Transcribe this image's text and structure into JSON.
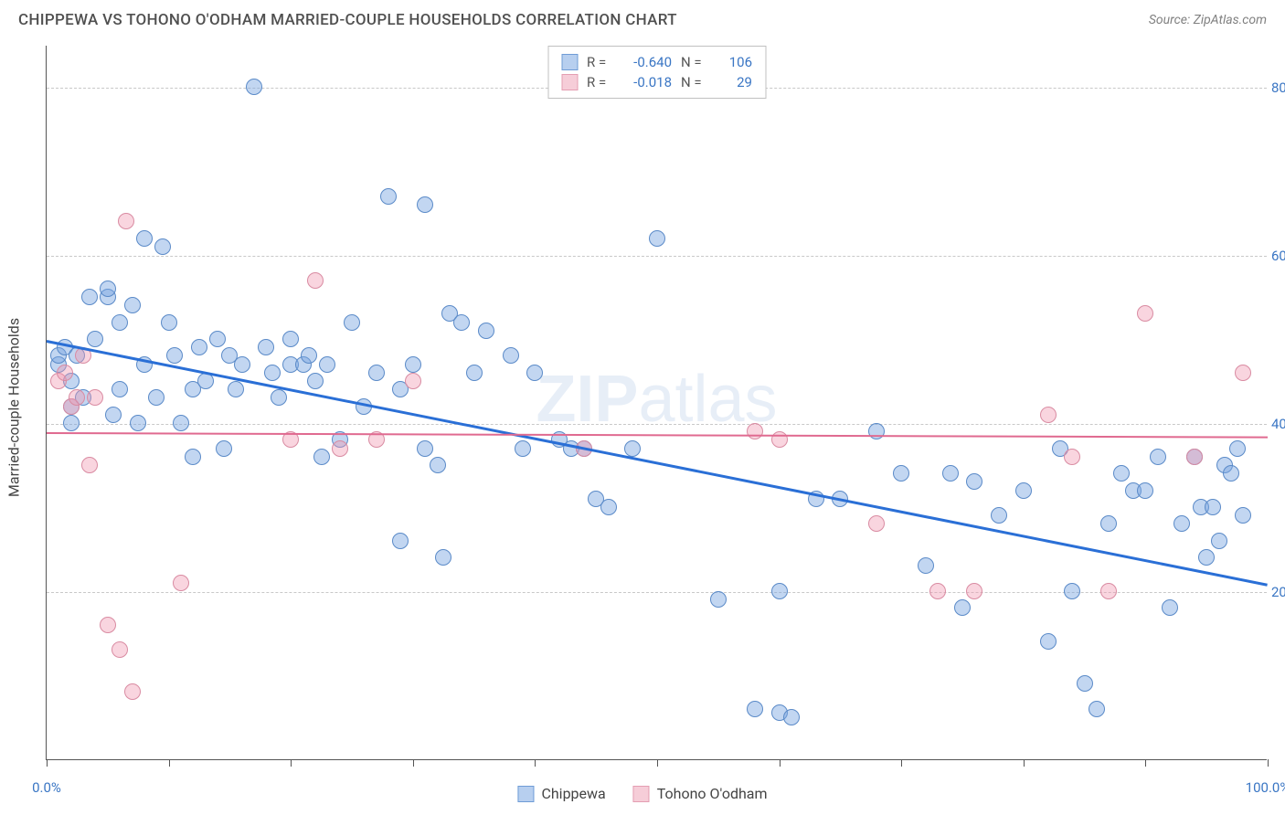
{
  "header": {
    "title": "CHIPPEWA VS TOHONO O'ODHAM MARRIED-COUPLE HOUSEHOLDS CORRELATION CHART",
    "source": "Source: ZipAtlas.com"
  },
  "chart": {
    "type": "scatter",
    "ylabel": "Married-couple Households",
    "watermark": "ZIPatlas",
    "background_color": "#ffffff",
    "grid_color": "#c8c8c8",
    "axis_color": "#555555",
    "label_color": "#3a76c4",
    "xlim": [
      0,
      100
    ],
    "ylim": [
      0,
      85
    ],
    "xticks": [
      0,
      10,
      20,
      30,
      40,
      50,
      60,
      70,
      80,
      90,
      100
    ],
    "xtick_labels": {
      "0": "0.0%",
      "100": "100.0%"
    },
    "yticks": [
      20,
      40,
      60,
      80
    ],
    "ytick_labels": {
      "20": "20.0%",
      "40": "40.0%",
      "60": "60.0%",
      "80": "80.0%"
    },
    "point_radius": 9,
    "series": [
      {
        "name": "Chippewa",
        "fill_color": "rgba(120,165,225,0.45)",
        "stroke_color": "#5a8ac8",
        "swatch_fill": "#b7cfef",
        "swatch_border": "#6f9cd6",
        "R": "-0.640",
        "N": "106",
        "trend": {
          "x1": 0,
          "y1": 50,
          "x2": 100,
          "y2": 21,
          "color": "#2a6fd6",
          "width": 2.5
        },
        "points": [
          [
            1,
            47
          ],
          [
            1,
            48
          ],
          [
            1.5,
            49
          ],
          [
            2,
            45
          ],
          [
            2,
            42
          ],
          [
            2,
            40
          ],
          [
            2.5,
            48
          ],
          [
            3,
            43
          ],
          [
            3.5,
            55
          ],
          [
            4,
            50
          ],
          [
            5,
            55
          ],
          [
            5,
            56
          ],
          [
            5.5,
            41
          ],
          [
            6,
            52
          ],
          [
            6,
            44
          ],
          [
            7,
            54
          ],
          [
            7.5,
            40
          ],
          [
            8,
            62
          ],
          [
            8,
            47
          ],
          [
            9,
            43
          ],
          [
            9.5,
            61
          ],
          [
            10,
            52
          ],
          [
            10.5,
            48
          ],
          [
            11,
            40
          ],
          [
            12,
            44
          ],
          [
            12,
            36
          ],
          [
            12.5,
            49
          ],
          [
            13,
            45
          ],
          [
            14,
            50
          ],
          [
            14.5,
            37
          ],
          [
            15,
            48
          ],
          [
            15.5,
            44
          ],
          [
            16,
            47
          ],
          [
            17,
            80
          ],
          [
            18,
            49
          ],
          [
            18.5,
            46
          ],
          [
            19,
            43
          ],
          [
            20,
            50
          ],
          [
            20,
            47
          ],
          [
            21,
            47
          ],
          [
            21.5,
            48
          ],
          [
            22,
            45
          ],
          [
            22.5,
            36
          ],
          [
            23,
            47
          ],
          [
            24,
            38
          ],
          [
            25,
            52
          ],
          [
            26,
            42
          ],
          [
            27,
            46
          ],
          [
            28,
            67
          ],
          [
            29,
            44
          ],
          [
            29,
            26
          ],
          [
            30,
            47
          ],
          [
            31,
            37
          ],
          [
            31,
            66
          ],
          [
            32,
            35
          ],
          [
            32.5,
            24
          ],
          [
            33,
            53
          ],
          [
            34,
            52
          ],
          [
            35,
            46
          ],
          [
            36,
            51
          ],
          [
            38,
            48
          ],
          [
            39,
            37
          ],
          [
            40,
            46
          ],
          [
            42,
            38
          ],
          [
            43,
            37
          ],
          [
            44,
            37
          ],
          [
            45,
            31
          ],
          [
            46,
            30
          ],
          [
            48,
            37
          ],
          [
            50,
            62
          ],
          [
            55,
            19
          ],
          [
            58,
            6
          ],
          [
            60,
            20
          ],
          [
            60,
            5.5
          ],
          [
            61,
            5
          ],
          [
            63,
            31
          ],
          [
            65,
            31
          ],
          [
            68,
            39
          ],
          [
            70,
            34
          ],
          [
            72,
            23
          ],
          [
            74,
            34
          ],
          [
            75,
            18
          ],
          [
            76,
            33
          ],
          [
            78,
            29
          ],
          [
            80,
            32
          ],
          [
            82,
            14
          ],
          [
            83,
            37
          ],
          [
            84,
            20
          ],
          [
            85,
            9
          ],
          [
            86,
            6
          ],
          [
            87,
            28
          ],
          [
            88,
            34
          ],
          [
            89,
            32
          ],
          [
            90,
            32
          ],
          [
            91,
            36
          ],
          [
            92,
            18
          ],
          [
            93,
            28
          ],
          [
            94,
            36
          ],
          [
            94.5,
            30
          ],
          [
            95,
            24
          ],
          [
            95.5,
            30
          ],
          [
            96,
            26
          ],
          [
            96.5,
            35
          ],
          [
            97,
            34
          ],
          [
            97.5,
            37
          ],
          [
            98,
            29
          ]
        ]
      },
      {
        "name": "Tohono O'odham",
        "fill_color": "rgba(240,150,175,0.40)",
        "stroke_color": "#d98ba2",
        "swatch_fill": "#f6cdd8",
        "swatch_border": "#e49eb2",
        "R": "-0.018",
        "N": "29",
        "trend": {
          "x1": 0,
          "y1": 39,
          "x2": 100,
          "y2": 38.5,
          "color": "#e06a90",
          "width": 2
        },
        "points": [
          [
            1,
            45
          ],
          [
            1.5,
            46
          ],
          [
            2,
            42
          ],
          [
            2.5,
            43
          ],
          [
            3,
            48
          ],
          [
            3.5,
            35
          ],
          [
            4,
            43
          ],
          [
            5,
            16
          ],
          [
            6,
            13
          ],
          [
            6.5,
            64
          ],
          [
            7,
            8
          ],
          [
            11,
            21
          ],
          [
            20,
            38
          ],
          [
            22,
            57
          ],
          [
            24,
            37
          ],
          [
            27,
            38
          ],
          [
            30,
            45
          ],
          [
            44,
            37
          ],
          [
            58,
            39
          ],
          [
            60,
            38
          ],
          [
            68,
            28
          ],
          [
            73,
            20
          ],
          [
            76,
            20
          ],
          [
            82,
            41
          ],
          [
            84,
            36
          ],
          [
            87,
            20
          ],
          [
            90,
            53
          ],
          [
            94,
            36
          ],
          [
            98,
            46
          ]
        ]
      }
    ],
    "stats_box_labels": {
      "R": "R =",
      "N": "N ="
    },
    "legend": [
      {
        "name": "Chippewa",
        "swatch_fill": "#b7cfef",
        "swatch_border": "#6f9cd6"
      },
      {
        "name": "Tohono O'odham",
        "swatch_fill": "#f6cdd8",
        "swatch_border": "#e49eb2"
      }
    ]
  }
}
